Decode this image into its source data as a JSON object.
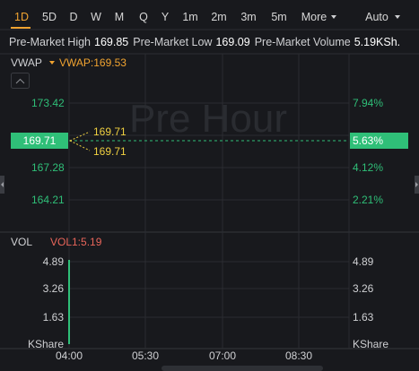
{
  "toolbar": {
    "tabs": [
      "1D",
      "5D",
      "D",
      "W",
      "M",
      "Q",
      "Y",
      "1m",
      "2m",
      "3m",
      "5m",
      "More"
    ],
    "right": "Auto"
  },
  "stats": [
    {
      "label": "Pre-Market High",
      "value": "169.85"
    },
    {
      "label": "Pre-Market Low",
      "value": "169.09"
    },
    {
      "label": "Pre-Market Volume",
      "value": "5.19KSh."
    }
  ],
  "price_panel": {
    "indicator": "VWAP",
    "indicator_value": "VWAP:169.53",
    "watermark": "Pre Hour",
    "left_axis": [
      "173.42",
      "167.28",
      "164.21"
    ],
    "right_axis": [
      "7.94%",
      "4.12%",
      "2.21%"
    ],
    "current_price": "169.71",
    "current_change": "5.63%",
    "markers": [
      "169.71",
      "169.71"
    ]
  },
  "volume_panel": {
    "indicator": "VOL",
    "indicator_value": "VOL1:5.19",
    "left_axis": [
      "4.89",
      "3.26",
      "1.63",
      "KShare"
    ],
    "right_axis": [
      "4.89",
      "3.26",
      "1.63",
      "KShare"
    ]
  },
  "time_axis": [
    "04:00",
    "05:30",
    "07:00",
    "08:30"
  ]
}
